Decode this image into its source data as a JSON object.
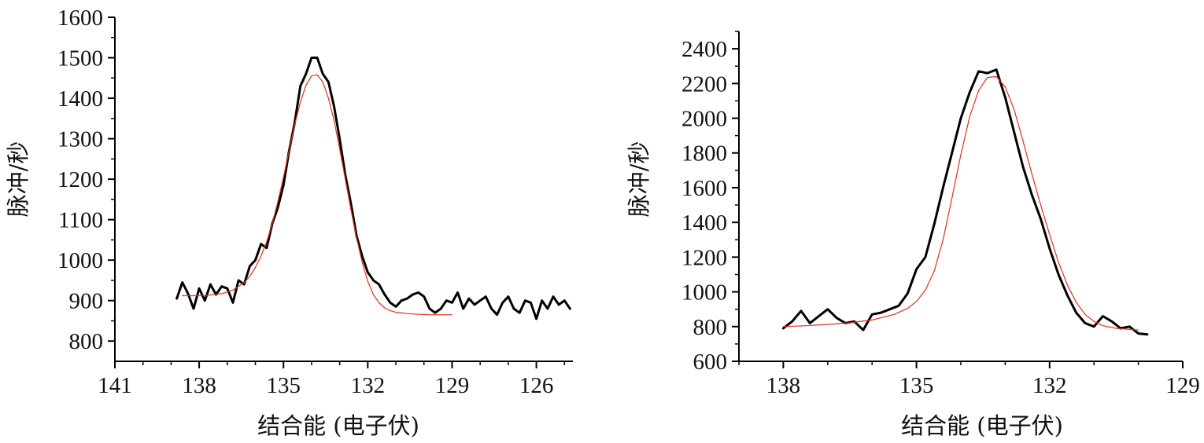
{
  "chart_data": [
    {
      "type": "line",
      "xlabel": "结合能 (电子伏)",
      "ylabel": "脉冲/秒",
      "xlim": [
        141,
        124.7
      ],
      "x_reversed": true,
      "ylim": [
        750,
        1600
      ],
      "xticks": [
        141,
        138,
        135,
        132,
        129,
        126
      ],
      "yticks": [
        800,
        900,
        1000,
        1100,
        1200,
        1300,
        1400,
        1500,
        1600
      ],
      "grid": false,
      "colors": {
        "data": "#000000",
        "fit": "#e0301e"
      },
      "series": [
        {
          "x": [
            138.8,
            138.6,
            138.4,
            138.2,
            138.0,
            137.8,
            137.6,
            137.4,
            137.2,
            137.0,
            136.8,
            136.6,
            136.4,
            136.2,
            136.0,
            135.8,
            135.6,
            135.4,
            135.2,
            135.0,
            134.8,
            134.6,
            134.4,
            134.2,
            134.0,
            133.8,
            133.6,
            133.4,
            133.2,
            133.0,
            132.8,
            132.6,
            132.4,
            132.2,
            132.0,
            131.8,
            131.6,
            131.4,
            131.2,
            131.0,
            130.8,
            130.6,
            130.4,
            130.2,
            130.0,
            129.8,
            129.6,
            129.4,
            129.2,
            129.0,
            128.8,
            128.6,
            128.4,
            128.2,
            128.0,
            127.8,
            127.6,
            127.4,
            127.2,
            127.0,
            126.8,
            126.6,
            126.4,
            126.2,
            126.0,
            125.8,
            125.6,
            125.4,
            125.2,
            125.0,
            124.8
          ],
          "y": [
            905,
            945,
            918,
            880,
            930,
            900,
            940,
            915,
            935,
            930,
            895,
            950,
            940,
            985,
            1000,
            1040,
            1030,
            1090,
            1130,
            1185,
            1270,
            1340,
            1430,
            1460,
            1500,
            1500,
            1460,
            1440,
            1380,
            1300,
            1210,
            1140,
            1060,
            1010,
            970,
            950,
            940,
            915,
            895,
            885,
            900,
            905,
            915,
            920,
            910,
            880,
            870,
            880,
            900,
            895,
            920,
            880,
            905,
            890,
            900,
            910,
            880,
            865,
            895,
            910,
            880,
            870,
            900,
            895,
            855,
            900,
            880,
            910,
            890,
            900,
            880
          ]
        },
        {
          "x": [
            138.6,
            138.0,
            137.6,
            137.2,
            136.8,
            136.4,
            136.2,
            136.0,
            135.8,
            135.6,
            135.4,
            135.2,
            135.0,
            134.8,
            134.6,
            134.4,
            134.2,
            134.0,
            133.8,
            133.6,
            133.4,
            133.2,
            133.0,
            132.8,
            132.6,
            132.4,
            132.2,
            132.0,
            131.8,
            131.6,
            131.4,
            131.2,
            131.0,
            130.6,
            130.2,
            129.8,
            129.4,
            129.0
          ],
          "y": [
            912,
            912,
            914,
            917,
            926,
            944,
            960,
            982,
            1010,
            1045,
            1090,
            1145,
            1205,
            1270,
            1335,
            1390,
            1432,
            1455,
            1458,
            1440,
            1400,
            1345,
            1275,
            1200,
            1125,
            1055,
            995,
            948,
            915,
            895,
            882,
            875,
            871,
            868,
            866,
            865,
            865,
            865
          ]
        }
      ]
    },
    {
      "type": "line",
      "xlabel": "结合能 (电子伏)",
      "ylabel": "脉冲/秒",
      "xlim": [
        139,
        129
      ],
      "x_reversed": true,
      "ylim": [
        600,
        2500
      ],
      "xticks": [
        138,
        135,
        132,
        129
      ],
      "yticks": [
        600,
        800,
        1000,
        1200,
        1400,
        1600,
        1800,
        2000,
        2200,
        2400
      ],
      "grid": false,
      "colors": {
        "data": "#000000",
        "fit": "#e0301e"
      },
      "series": [
        {
          "x": [
            138.0,
            137.8,
            137.6,
            137.4,
            137.2,
            137.0,
            136.8,
            136.6,
            136.4,
            136.2,
            136.0,
            135.8,
            135.6,
            135.4,
            135.2,
            135.0,
            134.8,
            134.6,
            134.4,
            134.2,
            134.0,
            133.8,
            133.6,
            133.4,
            133.2,
            133.0,
            132.8,
            132.6,
            132.4,
            132.2,
            132.0,
            131.8,
            131.6,
            131.4,
            131.2,
            131.0,
            130.8,
            130.6,
            130.4,
            130.2,
            130.0,
            129.8
          ],
          "y": [
            790,
            830,
            890,
            820,
            860,
            900,
            850,
            820,
            830,
            780,
            870,
            880,
            900,
            920,
            990,
            1130,
            1200,
            1390,
            1600,
            1800,
            2000,
            2150,
            2270,
            2260,
            2280,
            2120,
            1920,
            1720,
            1560,
            1420,
            1250,
            1100,
            980,
            880,
            820,
            800,
            860,
            830,
            790,
            800,
            760,
            755
          ]
        },
        {
          "x": [
            138.0,
            137.5,
            137.0,
            136.5,
            136.0,
            135.5,
            135.2,
            135.0,
            134.8,
            134.6,
            134.4,
            134.2,
            134.0,
            133.8,
            133.6,
            133.4,
            133.2,
            133.0,
            132.8,
            132.6,
            132.4,
            132.2,
            132.0,
            131.8,
            131.6,
            131.4,
            131.2,
            131.0,
            130.8,
            130.5,
            130.0
          ],
          "y": [
            800,
            805,
            812,
            822,
            838,
            870,
            905,
            945,
            1010,
            1120,
            1300,
            1540,
            1790,
            2010,
            2160,
            2235,
            2240,
            2180,
            2050,
            1870,
            1680,
            1500,
            1330,
            1170,
            1040,
            940,
            870,
            830,
            805,
            790,
            780
          ]
        }
      ]
    }
  ]
}
